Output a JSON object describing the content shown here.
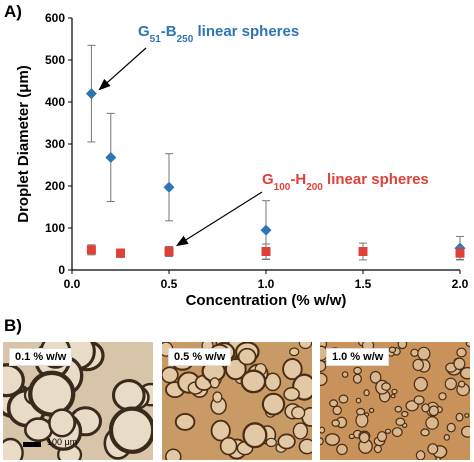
{
  "panel_a_label": "A)",
  "panel_b_label": "B)",
  "chart_data": {
    "type": "scatter",
    "xlabel": "Concentration (% w/w)",
    "ylabel": "Droplet Diameter (μm)",
    "xlim": [
      0,
      2.0
    ],
    "ylim": [
      0,
      600
    ],
    "xticks": [
      "0.0",
      "0.5",
      "1.0",
      "1.5",
      "2.0"
    ],
    "yticks": [
      "0",
      "100",
      "200",
      "300",
      "400",
      "500",
      "600"
    ],
    "grid": false,
    "series": [
      {
        "name": "G51-B250 linear spheres",
        "label_parts": [
          "G",
          "51",
          "-B",
          "250",
          " linear spheres"
        ],
        "color": "#2E75B6",
        "marker": "diamond",
        "x": [
          0.1,
          0.2,
          0.5,
          1.0,
          2.0
        ],
        "y": [
          420,
          268,
          197,
          95,
          52
        ],
        "err": [
          115,
          105,
          80,
          70,
          28
        ]
      },
      {
        "name": "G100-H200 linear spheres",
        "label_parts": [
          "G",
          "100",
          "-H",
          "200",
          " linear spheres"
        ],
        "color": "#E0403A",
        "marker": "square",
        "x": [
          0.1,
          0.25,
          0.5,
          1.0,
          1.5,
          2.0
        ],
        "y": [
          48,
          40,
          44,
          44,
          44,
          40
        ],
        "err": [
          12,
          10,
          12,
          18,
          20,
          15
        ]
      }
    ]
  },
  "micrographs": [
    {
      "label": "0.1 % w/w",
      "bg": "#d8c4a8"
    },
    {
      "label": "0.5  % w/w",
      "bg": "#c79a66"
    },
    {
      "label": "1.0 % w/w",
      "bg": "#c8925a"
    }
  ],
  "scale_bar_label": "100 μm"
}
